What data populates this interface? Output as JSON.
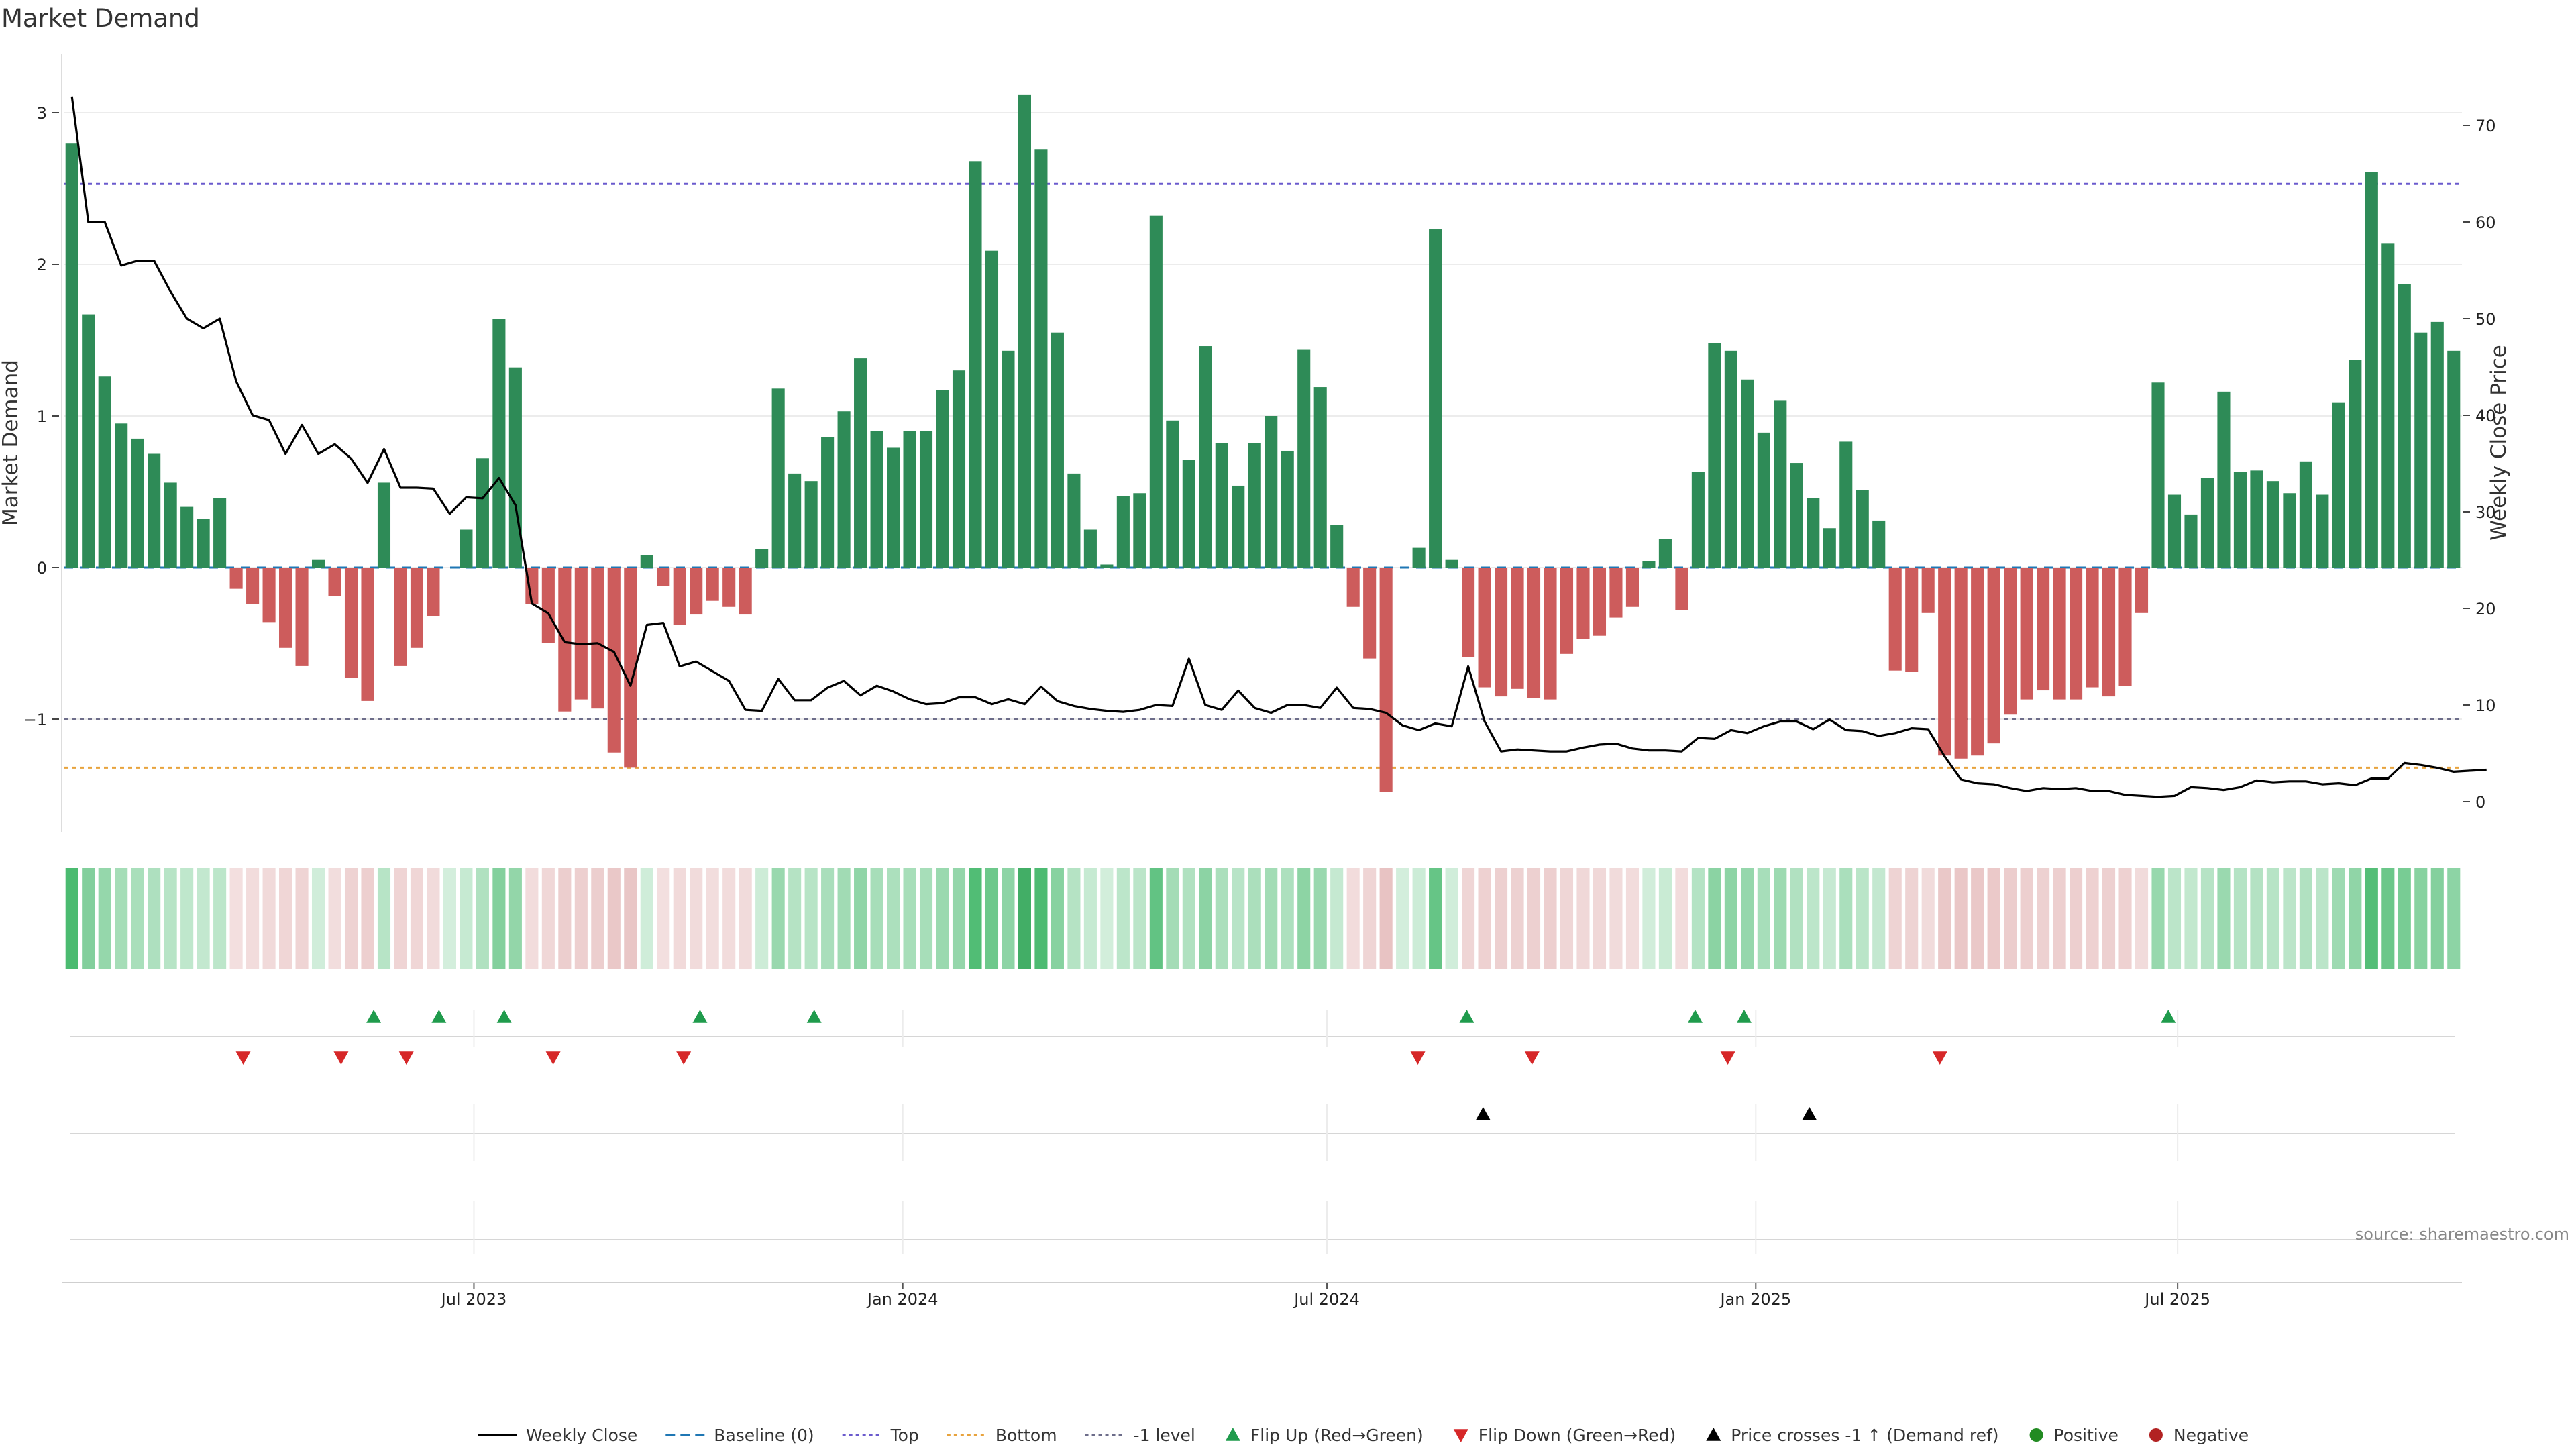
{
  "chart_data": {
    "type": "bar",
    "title": "Market Demand",
    "ylabel": "Market Demand",
    "ylabel_right": "Weekly Close Price",
    "ylim": [
      -1.7,
      3.4
    ],
    "ylim_right": [
      -3,
      78
    ],
    "yticks": [
      -1,
      0,
      1,
      2,
      3
    ],
    "yticks_right": [
      0,
      10,
      20,
      30,
      40,
      50,
      60,
      70
    ],
    "y_tick_labels": [
      "−1",
      "0",
      "1",
      "2",
      "3"
    ],
    "x_start": "2023-01-06",
    "x_end": "2025-10-31",
    "x_tick_dates": [
      "2023-07-01",
      "2024-01-01",
      "2024-07-01",
      "2025-01-01",
      "2025-07-01"
    ],
    "x_tick_labels": [
      "Jul 2023",
      "Jan 2024",
      "Jul 2024",
      "Jan 2025",
      "Jul 2025"
    ],
    "reference_lines": {
      "top": 2.53,
      "minus_one": -1.0,
      "bottom": -1.32,
      "baseline": 0
    },
    "demand": [
      2.8,
      1.67,
      1.26,
      0.95,
      0.85,
      0.75,
      0.56,
      0.4,
      0.32,
      0.46,
      -0.14,
      -0.24,
      -0.36,
      -0.53,
      -0.65,
      0.05,
      -0.19,
      -0.73,
      -0.88,
      0.56,
      -0.65,
      -0.53,
      -0.32,
      0.0,
      0.25,
      0.72,
      1.64,
      1.32,
      -0.24,
      -0.5,
      -0.95,
      -0.87,
      -0.93,
      -1.22,
      -1.32,
      0.08,
      -0.12,
      -0.38,
      -0.31,
      -0.22,
      -0.26,
      -0.31,
      0.12,
      1.18,
      0.62,
      0.57,
      0.86,
      1.03,
      1.38,
      0.9,
      0.79,
      0.9,
      0.9,
      1.17,
      1.3,
      2.68,
      2.09,
      1.43,
      3.12,
      2.76,
      1.55,
      0.62,
      0.25,
      0.02,
      0.47,
      0.49,
      2.32,
      0.97,
      0.71,
      1.46,
      0.82,
      0.54,
      0.82,
      1.0,
      0.77,
      1.44,
      1.19,
      0.28,
      -0.26,
      -0.6,
      -1.48,
      0.0,
      0.13,
      2.23,
      0.05,
      -0.59,
      -0.79,
      -0.85,
      -0.8,
      -0.86,
      -0.87,
      -0.57,
      -0.47,
      -0.45,
      -0.33,
      -0.26,
      0.04,
      0.19,
      -0.28,
      0.63,
      1.48,
      1.43,
      1.24,
      0.89,
      1.1,
      0.69,
      0.46,
      0.26,
      0.83,
      0.51,
      0.31,
      -0.68,
      -0.69,
      -0.3,
      -1.24,
      -1.26,
      -1.24,
      -1.16,
      -0.97,
      -0.87,
      -0.81,
      -0.87,
      -0.87,
      -0.79,
      -0.85,
      -0.78,
      -0.3,
      1.22,
      0.48,
      0.35,
      0.59,
      1.16,
      0.63,
      0.64,
      0.57,
      0.49,
      0.7,
      0.48,
      1.09,
      1.37,
      2.61,
      2.14,
      1.87,
      1.55,
      1.62,
      1.43
    ],
    "close": [
      73,
      60,
      60,
      55.5,
      56,
      56,
      52.8,
      50,
      49,
      50,
      43.5,
      40,
      39.5,
      36,
      39,
      36,
      37,
      35.5,
      33,
      36.5,
      32.5,
      32.5,
      32.4,
      29.8,
      31.5,
      31.4,
      33.5,
      30.7,
      20.5,
      19.5,
      16.5,
      16.3,
      16.4,
      15.5,
      12,
      18.3,
      18.5,
      14,
      14.5,
      13.5,
      12.5,
      9.5,
      9.4,
      12.7,
      10.5,
      10.5,
      11.8,
      12.5,
      11,
      12,
      11.4,
      10.6,
      10.1,
      10.2,
      10.8,
      10.8,
      10.1,
      10.6,
      10.1,
      11.9,
      10.4,
      9.9,
      9.6,
      9.4,
      9.3,
      9.5,
      10,
      9.9,
      14.8,
      10,
      9.5,
      11.5,
      9.7,
      9.2,
      10,
      10,
      9.7,
      11.8,
      9.7,
      9.6,
      9.2,
      7.9,
      7.4,
      8.1,
      7.8,
      14,
      8.3,
      5.2,
      5.4,
      5.3,
      5.2,
      5.2,
      5.6,
      5.9,
      6,
      5.5,
      5.3,
      5.3,
      5.2,
      6.6,
      6.5,
      7.4,
      7.1,
      7.8,
      8.3,
      8.3,
      7.5,
      8.5,
      7.4,
      7.3,
      6.8,
      7.1,
      7.6,
      7.5,
      4.7,
      2.3,
      1.9,
      1.8,
      1.4,
      1.1,
      1.4,
      1.3,
      1.4,
      1.1,
      1.1,
      0.7,
      0.6,
      0.5,
      0.6,
      1.5,
      1.4,
      1.2,
      1.5,
      2.2,
      2,
      2.1,
      2.1,
      1.8,
      1.9,
      1.7,
      2.4,
      2.4,
      4,
      3.8,
      3.5,
      3.1,
      3.2,
      3.3
    ],
    "flip_up_dates": [
      "2023-05-19",
      "2023-06-16",
      "2023-07-14",
      "2023-10-06",
      "2023-11-24",
      "2024-08-30",
      "2024-12-06",
      "2024-12-27",
      "2025-06-27"
    ],
    "flip_down_dates": [
      "2023-03-24",
      "2023-05-05",
      "2023-06-02",
      "2023-08-04",
      "2023-09-29",
      "2024-08-09",
      "2024-09-27",
      "2024-12-20",
      "2025-03-21"
    ],
    "price_cross_dates": [
      "2024-09-06",
      "2025-01-24"
    ],
    "colors": {
      "positive": "#2e8b57",
      "negative": "#cd5c5c",
      "price": "#000000",
      "top": "#6a5acd",
      "bottom": "#e8a33d",
      "minus_one": "#6d6d8a",
      "flip_up": "#1f9b4c",
      "flip_down": "#d62728",
      "cross": "#000000",
      "dot_positive": "#228b22",
      "dot_negative": "#b22222"
    },
    "legend": [
      {
        "label": "Weekly Close",
        "marker": "line-solid",
        "color": "#000000"
      },
      {
        "label": "Baseline (0)",
        "marker": "line-dashed",
        "color": "#1f77b4"
      },
      {
        "label": "Top",
        "marker": "line-dotted",
        "color": "#6a5acd"
      },
      {
        "label": "Bottom",
        "marker": "line-dotted",
        "color": "#e8a33d"
      },
      {
        "label": "-1 level",
        "marker": "line-dotted",
        "color": "#6d6d8a"
      },
      {
        "label": "Flip Up (Red→Green)",
        "marker": "tri-up",
        "color": "#1f9b4c"
      },
      {
        "label": "Flip Down (Green→Red)",
        "marker": "tri-down",
        "color": "#d62728"
      },
      {
        "label": "Price crosses -1 ↑ (Demand ref)",
        "marker": "tri-up",
        "color": "#000000"
      },
      {
        "label": "Positive",
        "marker": "dot",
        "color": "#228b22"
      },
      {
        "label": "Negative",
        "marker": "dot",
        "color": "#b22222"
      }
    ],
    "legend_position": "bottom-center",
    "source": "source: sharemaestro.com"
  }
}
